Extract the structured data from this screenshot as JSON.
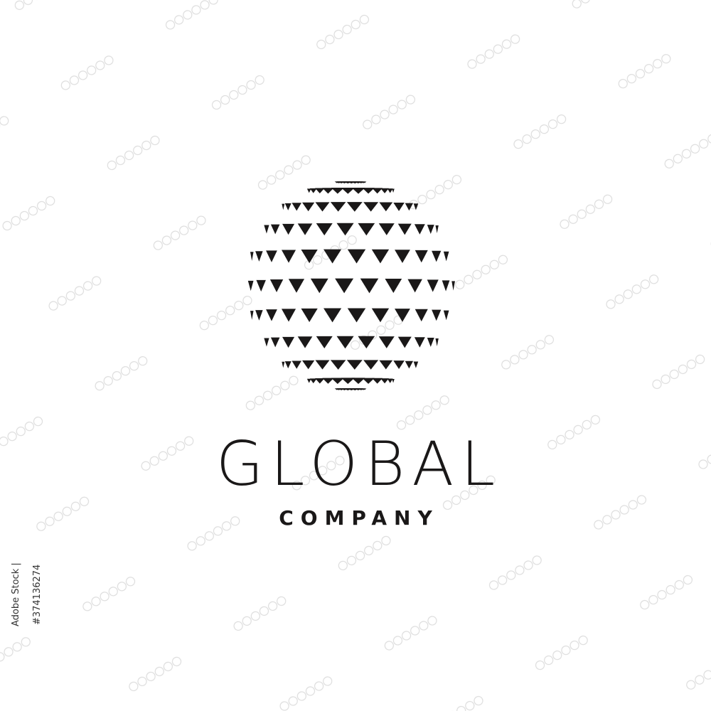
{
  "logo": {
    "name": "GLOBAL",
    "tagline": "COMPANY",
    "ink_color": "#1a1818",
    "icon": "globe-triangle-pattern-icon"
  },
  "stock": {
    "id": "Adobe Stock | #374136274"
  },
  "watermark": {
    "icon": "stock-watermark-pattern"
  }
}
